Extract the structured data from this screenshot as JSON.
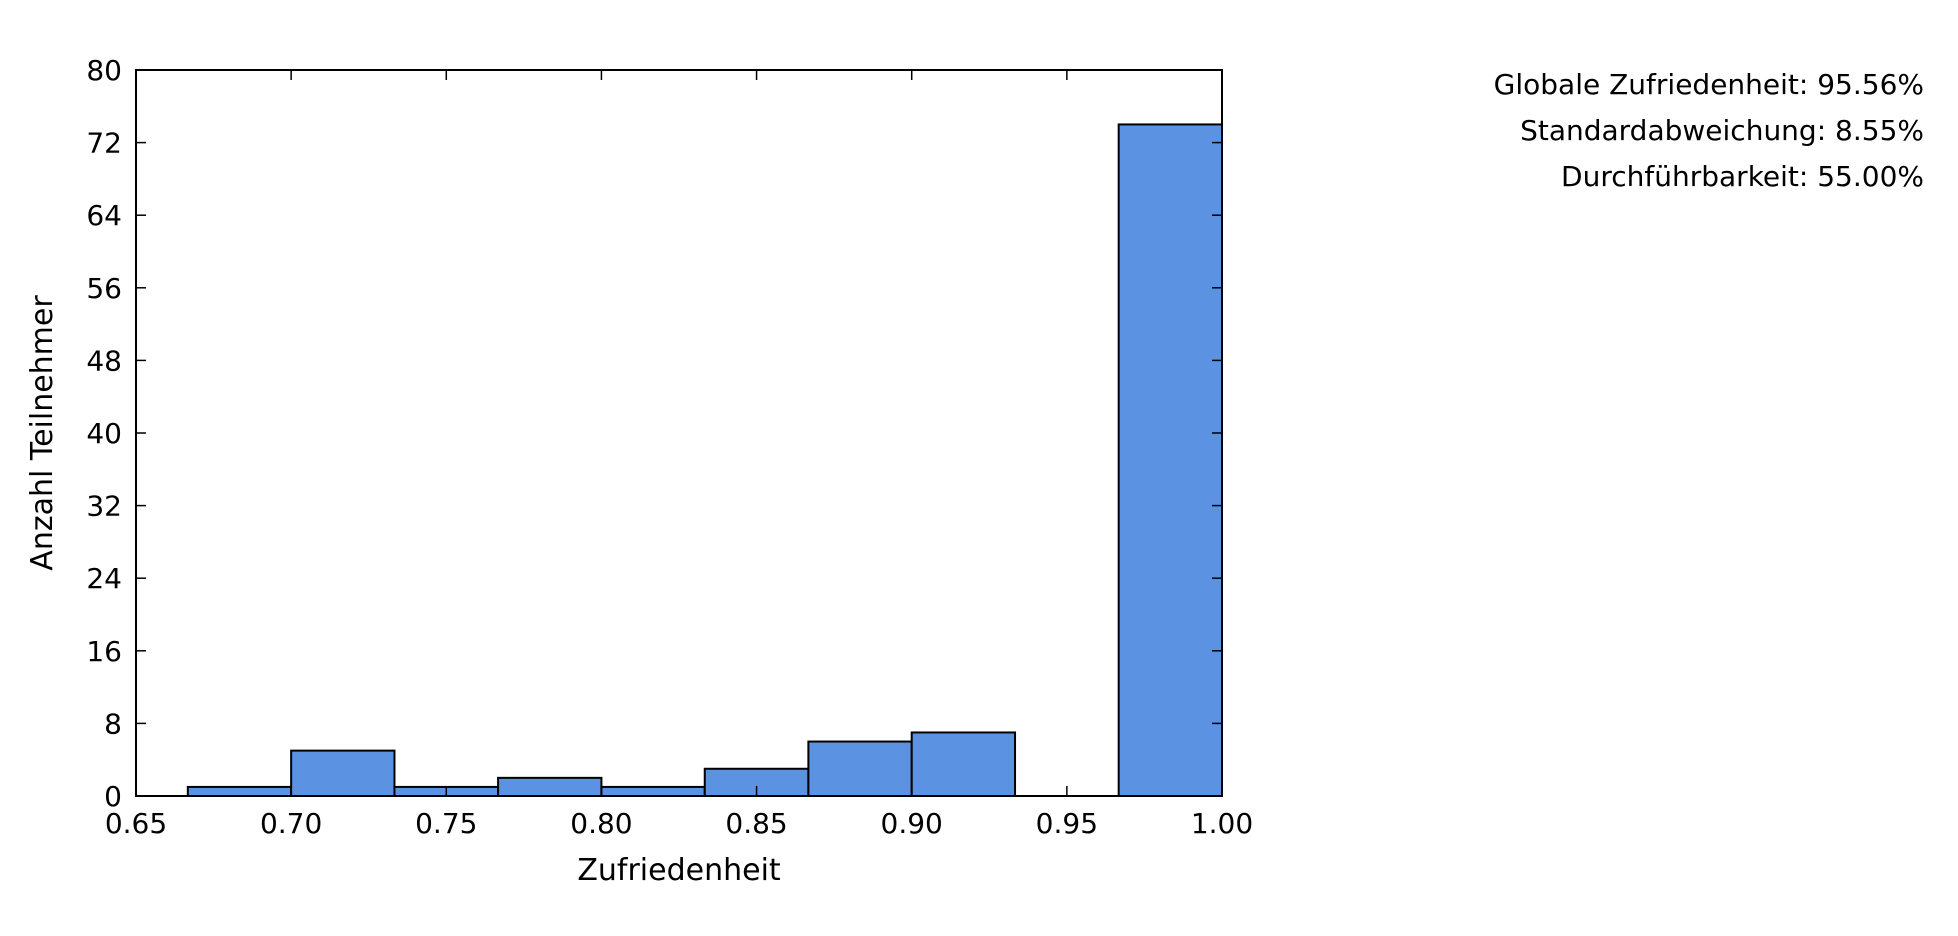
{
  "stats": {
    "global_satisfaction": "Globale Zufriedenheit: 95.56%",
    "std_dev": "Standardabweichung: 8.55%",
    "feasibility": "Durchführbarkeit: 55.00%"
  },
  "chart_data": {
    "type": "bar",
    "xlabel": "Zufriedenheit",
    "ylabel": "Anzahl Teilnehmer",
    "xlim": [
      0.65,
      1.0
    ],
    "ylim": [
      0,
      80
    ],
    "xticks": [
      "0.65",
      "0.70",
      "0.75",
      "0.80",
      "0.85",
      "0.90",
      "0.95",
      "1.00"
    ],
    "yticks": [
      "0",
      "8",
      "16",
      "24",
      "32",
      "40",
      "48",
      "56",
      "64",
      "72",
      "80"
    ],
    "bar_color": "#5b93e2",
    "bins": [
      {
        "start": 0.6667,
        "end": 0.7,
        "value": 1
      },
      {
        "start": 0.7,
        "end": 0.7333,
        "value": 5
      },
      {
        "start": 0.7333,
        "end": 0.7667,
        "value": 1
      },
      {
        "start": 0.7667,
        "end": 0.8,
        "value": 2
      },
      {
        "start": 0.8,
        "end": 0.8333,
        "value": 1
      },
      {
        "start": 0.8333,
        "end": 0.8667,
        "value": 3
      },
      {
        "start": 0.8667,
        "end": 0.9,
        "value": 6
      },
      {
        "start": 0.9,
        "end": 0.9333,
        "value": 7
      },
      {
        "start": 0.9333,
        "end": 0.9667,
        "value": 0
      },
      {
        "start": 0.9667,
        "end": 1.0,
        "value": 74
      }
    ]
  }
}
